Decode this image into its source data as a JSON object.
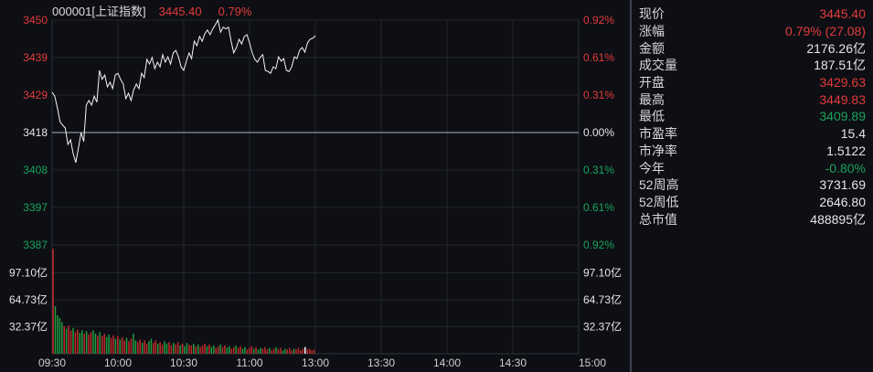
{
  "header": {
    "symbol": "000001[上证指数]",
    "price": "3445.40",
    "change_pct": "0.79%"
  },
  "colors": {
    "up": "#e23b3b",
    "down": "#1aa35c",
    "flat": "#e6e6e6",
    "axis_text": "#cfcfcf",
    "bg": "#0d0f14",
    "grid": "#23262d",
    "border": "#2e323b",
    "zero_line": "#8d939c",
    "price_line": "#f5f5f5",
    "vol_up": "#c22a2a",
    "vol_down": "#1f9c40",
    "vol_last": "#ffffff",
    "divider": "#3c424e"
  },
  "chart_data": [
    {
      "type": "line",
      "title": "000001[上证指数] intraday price",
      "prev_close": 3418.32,
      "ylim": [
        3386.87,
        3449.77
      ],
      "x_axis": {
        "labels": [
          "09:30",
          "10:00",
          "10:30",
          "11:00",
          "13:00",
          "13:30",
          "14:00",
          "14:30",
          "15:00"
        ],
        "session_minutes": 240
      },
      "price_ticks": [
        {
          "text": "3450",
          "pct": "0.92%",
          "tone": "up"
        },
        {
          "text": "3439",
          "pct": "0.61%",
          "tone": "up"
        },
        {
          "text": "3429",
          "pct": "0.31%",
          "tone": "up"
        },
        {
          "text": "3418",
          "pct": "0.00%",
          "tone": "flat"
        },
        {
          "text": "3408",
          "pct": "0.31%",
          "tone": "down"
        },
        {
          "text": "3397",
          "pct": "0.61%",
          "tone": "down"
        },
        {
          "text": "3387",
          "pct": "0.92%",
          "tone": "down"
        }
      ],
      "prices": [
        3429.6,
        3428.5,
        3425.2,
        3421.4,
        3420.4,
        3419.6,
        3415.0,
        3416.3,
        3412.5,
        3409.9,
        3414.0,
        3418.3,
        3415.8,
        3426.0,
        3427.3,
        3426.0,
        3428.5,
        3426.8,
        3435.7,
        3433.2,
        3434.4,
        3431.1,
        3432.4,
        3430.6,
        3434.4,
        3434.9,
        3433.2,
        3431.9,
        3427.8,
        3429.3,
        3427.3,
        3430.3,
        3431.9,
        3430.6,
        3434.9,
        3433.7,
        3438.8,
        3437.5,
        3439.3,
        3436.2,
        3438.0,
        3436.7,
        3440.1,
        3438.0,
        3439.5,
        3437.5,
        3440.6,
        3441.3,
        3439.5,
        3436.7,
        3435.7,
        3438.3,
        3440.6,
        3439.0,
        3443.9,
        3442.6,
        3445.2,
        3443.9,
        3445.9,
        3447.0,
        3445.7,
        3447.3,
        3448.5,
        3449.8,
        3446.4,
        3447.8,
        3447.3,
        3447.8,
        3443.9,
        3440.6,
        3442.1,
        3444.4,
        3443.1,
        3445.2,
        3445.7,
        3443.4,
        3440.6,
        3438.8,
        3438.0,
        3439.3,
        3440.1,
        3435.7,
        3435.4,
        3434.9,
        3436.7,
        3436.2,
        3439.5,
        3438.3,
        3439.0,
        3435.7,
        3435.4,
        3436.7,
        3439.5,
        3439.0,
        3441.3,
        3442.1,
        3440.8,
        3443.4,
        3444.4,
        3444.7,
        3445.4
      ]
    },
    {
      "type": "bar",
      "title": "volume per minute (亿)",
      "volume_ticks": [
        "97.10亿",
        "64.73亿",
        "32.37亿"
      ],
      "ylim": [
        0,
        129.48
      ],
      "bars": [
        [
          126,
          "r"
        ],
        [
          57,
          "g"
        ],
        [
          46,
          "g"
        ],
        [
          43,
          "g"
        ],
        [
          38,
          "g"
        ],
        [
          33,
          "r"
        ],
        [
          30,
          "g"
        ],
        [
          34,
          "r"
        ],
        [
          28,
          "r"
        ],
        [
          31,
          "g"
        ],
        [
          26,
          "r"
        ],
        [
          29,
          "r"
        ],
        [
          25,
          "g"
        ],
        [
          28,
          "g"
        ],
        [
          24,
          "r"
        ],
        [
          27,
          "g"
        ],
        [
          23,
          "r"
        ],
        [
          26,
          "r"
        ],
        [
          28,
          "g"
        ],
        [
          24,
          "g"
        ],
        [
          22,
          "r"
        ],
        [
          26,
          "g"
        ],
        [
          21,
          "r"
        ],
        [
          24,
          "r"
        ],
        [
          20,
          "g"
        ],
        [
          23,
          "g"
        ],
        [
          19,
          "r"
        ],
        [
          22,
          "r"
        ],
        [
          18,
          "g"
        ],
        [
          21,
          "r"
        ],
        [
          17,
          "g"
        ],
        [
          20,
          "r"
        ],
        [
          16,
          "r"
        ],
        [
          19,
          "g"
        ],
        [
          15,
          "r"
        ],
        [
          18,
          "r"
        ],
        [
          24,
          "g"
        ],
        [
          16,
          "g"
        ],
        [
          14,
          "r"
        ],
        [
          17,
          "r"
        ],
        [
          13,
          "g"
        ],
        [
          16,
          "r"
        ],
        [
          12,
          "r"
        ],
        [
          15,
          "g"
        ],
        [
          18,
          "g"
        ],
        [
          13,
          "r"
        ],
        [
          16,
          "r"
        ],
        [
          12,
          "g"
        ],
        [
          14,
          "r"
        ],
        [
          11,
          "r"
        ],
        [
          15,
          "g"
        ],
        [
          12,
          "g"
        ],
        [
          14,
          "r"
        ],
        [
          10,
          "r"
        ],
        [
          13,
          "g"
        ],
        [
          11,
          "r"
        ],
        [
          14,
          "r"
        ],
        [
          10,
          "g"
        ],
        [
          12,
          "r"
        ],
        [
          9,
          "g"
        ],
        [
          13,
          "g"
        ],
        [
          11,
          "r"
        ],
        [
          10,
          "r"
        ],
        [
          12,
          "g"
        ],
        [
          9,
          "r"
        ],
        [
          11,
          "g"
        ],
        [
          8,
          "r"
        ],
        [
          10,
          "r"
        ],
        [
          12,
          "r"
        ],
        [
          9,
          "g"
        ],
        [
          11,
          "r"
        ],
        [
          8,
          "g"
        ],
        [
          10,
          "g"
        ],
        [
          7,
          "r"
        ],
        [
          9,
          "r"
        ],
        [
          11,
          "g"
        ],
        [
          8,
          "r"
        ],
        [
          10,
          "r"
        ],
        [
          7,
          "g"
        ],
        [
          9,
          "g"
        ],
        [
          6,
          "r"
        ],
        [
          8,
          "r"
        ],
        [
          10,
          "g"
        ],
        [
          7,
          "r"
        ],
        [
          9,
          "r"
        ],
        [
          6,
          "g"
        ],
        [
          8,
          "g"
        ],
        [
          5,
          "r"
        ],
        [
          7,
          "r"
        ],
        [
          9,
          "r"
        ],
        [
          6,
          "g"
        ],
        [
          8,
          "r"
        ],
        [
          5,
          "g"
        ],
        [
          7,
          "g"
        ],
        [
          6,
          "r"
        ],
        [
          8,
          "r"
        ],
        [
          5,
          "r"
        ],
        [
          7,
          "g"
        ],
        [
          4,
          "r"
        ],
        [
          6,
          "r"
        ],
        [
          8,
          "g"
        ],
        [
          5,
          "r"
        ],
        [
          7,
          "r"
        ],
        [
          4,
          "g"
        ],
        [
          6,
          "g"
        ],
        [
          5,
          "r"
        ],
        [
          7,
          "r"
        ],
        [
          4,
          "r"
        ],
        [
          6,
          "g"
        ],
        [
          5,
          "r"
        ],
        [
          7,
          "r"
        ],
        [
          4,
          "r"
        ],
        [
          6,
          "r"
        ],
        [
          8,
          "w"
        ],
        [
          5,
          "r"
        ],
        [
          6,
          "r"
        ],
        [
          4,
          "r"
        ],
        [
          5,
          "r"
        ]
      ]
    }
  ],
  "quote_panel": {
    "rows": [
      {
        "label": "现价",
        "value": "3445.40",
        "tone": "up"
      },
      {
        "label": "涨幅",
        "value": "0.79% (27.08)",
        "tone": "up"
      },
      {
        "label": "金额",
        "value": "2176.26亿",
        "tone": "flat"
      },
      {
        "label": "成交量",
        "value": "187.51亿",
        "tone": "flat"
      },
      {
        "label": "开盘",
        "value": "3429.63",
        "tone": "up"
      },
      {
        "label": "最高",
        "value": "3449.83",
        "tone": "up"
      },
      {
        "label": "最低",
        "value": "3409.89",
        "tone": "down"
      },
      {
        "label": "市盈率",
        "value": "15.4",
        "tone": "flat"
      },
      {
        "label": "市净率",
        "value": "1.5122",
        "tone": "flat"
      },
      {
        "label": "今年",
        "value": "-0.80%",
        "tone": "down"
      },
      {
        "label": "52周高",
        "value": "3731.69",
        "tone": "flat"
      },
      {
        "label": "52周低",
        "value": "2646.80",
        "tone": "flat"
      },
      {
        "label": "总市值",
        "value": "488895亿",
        "tone": "flat"
      }
    ]
  }
}
